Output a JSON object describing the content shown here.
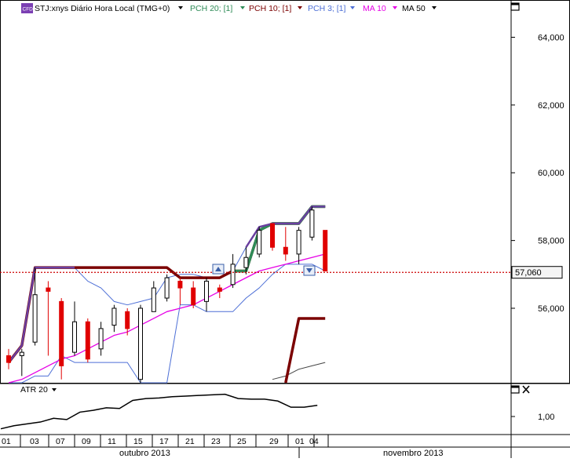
{
  "header": {
    "badge": "CFD",
    "symbol_label": "STJ:xnys Diário Hora Local (TMG+0)",
    "indicators": [
      {
        "label": "PCH 20; [1]",
        "color": "#2e8b57"
      },
      {
        "label": "PCH 10; [1]",
        "color": "#7b0000"
      },
      {
        "label": "PCH 3; [1]",
        "color": "#4d6fd6"
      },
      {
        "label": "MA 10",
        "color": "#e600e6"
      },
      {
        "label": "MA 50",
        "color": "#000000"
      }
    ]
  },
  "price_axis": {
    "ticks": [
      "64,000",
      "62,000",
      "60,000",
      "58,000",
      "56,000"
    ],
    "last_price": "57,060"
  },
  "atr_panel": {
    "label": "ATR 20",
    "ticks": [
      "1,00"
    ]
  },
  "date_axis": {
    "days": [
      "01",
      "03",
      "07",
      "09",
      "11",
      "15",
      "17",
      "21",
      "23",
      "25",
      "29",
      "01",
      "04"
    ],
    "months": [
      "outubro 2013",
      "novembro 2013"
    ]
  },
  "chart_data": {
    "type": "candlestick",
    "ylim": [
      53.8,
      65.1
    ],
    "candles": [
      {
        "o": 54.6,
        "h": 54.8,
        "l": 54.2,
        "c": 54.4
      },
      {
        "o": 54.6,
        "h": 54.8,
        "l": 54.0,
        "c": 54.7
      },
      {
        "o": 55.0,
        "h": 57.2,
        "l": 54.9,
        "c": 56.4
      },
      {
        "o": 56.6,
        "h": 56.8,
        "l": 54.6,
        "c": 56.5
      },
      {
        "o": 56.2,
        "h": 56.3,
        "l": 53.9,
        "c": 54.3
      },
      {
        "o": 54.7,
        "h": 56.2,
        "l": 54.6,
        "c": 55.6
      },
      {
        "o": 55.6,
        "h": 55.7,
        "l": 54.4,
        "c": 54.5
      },
      {
        "o": 54.8,
        "h": 55.6,
        "l": 54.6,
        "c": 55.4
      },
      {
        "o": 55.5,
        "h": 56.1,
        "l": 55.3,
        "c": 56.0
      },
      {
        "o": 55.9,
        "h": 56.0,
        "l": 55.2,
        "c": 55.4
      },
      {
        "o": 53.9,
        "h": 56.1,
        "l": 53.8,
        "c": 56.0
      },
      {
        "o": 55.9,
        "h": 56.8,
        "l": 55.9,
        "c": 56.6
      },
      {
        "o": 56.3,
        "h": 57.0,
        "l": 56.2,
        "c": 56.9
      },
      {
        "o": 56.8,
        "h": 56.9,
        "l": 56.1,
        "c": 56.6
      },
      {
        "o": 56.6,
        "h": 56.8,
        "l": 56.0,
        "c": 56.1
      },
      {
        "o": 56.2,
        "h": 56.9,
        "l": 55.9,
        "c": 56.8
      },
      {
        "o": 56.6,
        "h": 56.7,
        "l": 56.3,
        "c": 56.5
      },
      {
        "o": 56.7,
        "h": 57.6,
        "l": 56.6,
        "c": 57.3
      },
      {
        "o": 57.2,
        "h": 57.8,
        "l": 57.0,
        "c": 57.5
      },
      {
        "o": 57.6,
        "h": 58.4,
        "l": 57.5,
        "c": 58.3
      },
      {
        "o": 58.5,
        "h": 58.5,
        "l": 57.7,
        "c": 57.8
      },
      {
        "o": 57.8,
        "h": 58.4,
        "l": 57.4,
        "c": 57.6
      },
      {
        "o": 57.6,
        "h": 58.4,
        "l": 57.3,
        "c": 58.3
      },
      {
        "o": 58.1,
        "h": 59.0,
        "l": 58.0,
        "c": 58.9
      },
      {
        "o": 58.3,
        "h": 58.3,
        "l": 57.1,
        "c": 57.1
      }
    ],
    "pch20_upper": [
      null,
      null,
      null,
      null,
      null,
      null,
      null,
      null,
      null,
      null,
      null,
      null,
      null,
      null,
      null,
      null,
      null,
      57.1,
      57.1,
      58.3,
      58.5,
      58.5,
      58.5,
      59.0,
      59.0
    ],
    "pch10_upper": [
      54.4,
      54.9,
      57.2,
      57.2,
      57.2,
      57.2,
      57.2,
      57.2,
      57.2,
      57.2,
      57.2,
      57.2,
      57.2,
      56.9,
      56.9,
      56.9,
      56.9,
      57.1,
      57.1,
      58.3,
      58.5,
      58.5,
      58.5,
      59.0,
      59.0
    ],
    "pch10_lower": [
      null,
      null,
      null,
      null,
      null,
      null,
      null,
      null,
      null,
      null,
      null,
      null,
      null,
      null,
      null,
      null,
      null,
      null,
      null,
      null,
      null,
      53.8,
      55.7,
      55.7,
      55.7
    ],
    "pch3_upper": [
      54.4,
      54.9,
      57.2,
      57.2,
      57.2,
      57.2,
      56.8,
      56.6,
      56.2,
      56.1,
      56.2,
      56.3,
      56.9,
      57.0,
      57.0,
      56.9,
      56.9,
      57.1,
      57.8,
      58.4,
      58.5,
      58.5,
      58.5,
      59.0,
      59.0
    ],
    "pch3_lower": [
      53.8,
      53.8,
      54.0,
      54.0,
      54.6,
      54.4,
      54.4,
      54.4,
      54.4,
      54.4,
      53.8,
      53.8,
      53.8,
      56.1,
      56.1,
      55.9,
      55.9,
      55.9,
      56.3,
      56.6,
      57.0,
      57.3,
      57.3,
      57.3,
      57.1
    ],
    "ma10": [
      53.8,
      53.9,
      54.1,
      54.3,
      54.5,
      54.6,
      54.8,
      55.0,
      55.2,
      55.3,
      55.5,
      55.7,
      55.9,
      56.0,
      56.1,
      56.3,
      56.5,
      56.7,
      56.9,
      57.1,
      57.2,
      57.3,
      57.4,
      57.5,
      57.6
    ],
    "ma50": [
      null,
      null,
      null,
      null,
      null,
      null,
      null,
      null,
      null,
      null,
      null,
      null,
      null,
      null,
      null,
      null,
      null,
      null,
      null,
      null,
      53.9,
      54.0,
      54.2,
      54.3,
      54.4
    ],
    "atr20": [
      0.78,
      0.83,
      0.86,
      0.89,
      0.95,
      0.93,
      1.05,
      1.08,
      1.12,
      1.11,
      1.24,
      1.27,
      1.28,
      1.3,
      1.31,
      1.32,
      1.33,
      1.34,
      1.27,
      1.26,
      1.26,
      1.23,
      1.13,
      1.13,
      1.16
    ],
    "atr_ylim": [
      0.7,
      1.5
    ]
  }
}
